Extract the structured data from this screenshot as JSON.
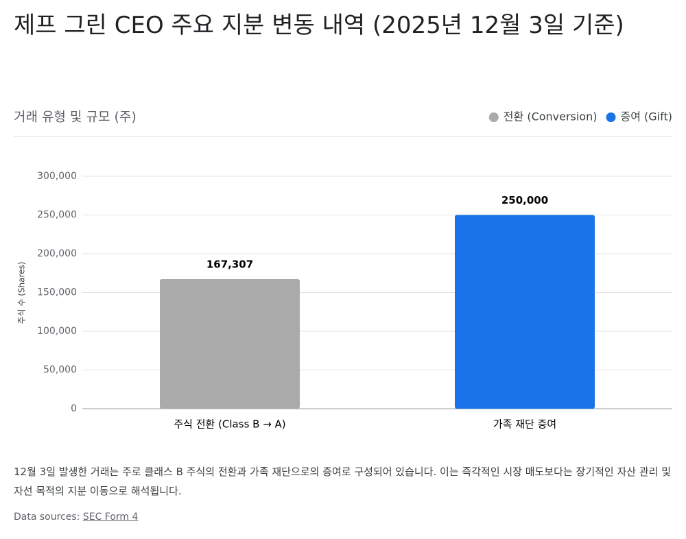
{
  "chart_data": {
    "type": "bar",
    "title": "제프 그린 CEO 주요 지분 변동 내역 (2025년 12월 3일 기준)",
    "subtitle": "거래 유형 및 규모 (주)",
    "y_label": "주식 수 (Shares)",
    "categories": [
      "주식 전환 (Class B → A)",
      "가족 재단 증여"
    ],
    "series": [
      {
        "name": "전환 (Conversion)",
        "color": "#aaaaaa",
        "values": [
          167307,
          null
        ],
        "value_labels": [
          "167,307",
          null
        ]
      },
      {
        "name": "증여 (Gift)",
        "color": "#1a73e8",
        "values": [
          null,
          250000
        ],
        "value_labels": [
          null,
          "250,000"
        ]
      }
    ],
    "ylim": [
      0,
      300000
    ],
    "yticks": [
      0,
      {
        "value": 50000,
        "label": "50,000"
      },
      {
        "value": 100000,
        "label": "100,000"
      },
      {
        "value": 150000,
        "label": "150,000"
      },
      {
        "value": 200000,
        "label": "200,000"
      },
      {
        "value": 250000,
        "label": "250,000"
      },
      {
        "value": 300000,
        "label": "300,000"
      }
    ],
    "grid": true,
    "legend": "top-right"
  },
  "description": "12월 3일 발생한 거래는 주로 클래스 B 주식의 전환과 가족 재단으로의 증여로 구성되어 있습니다. 이는 즉각적인 시장 매도보다는 장기적인 자산 관리 및 자선 목적의 지분 이동으로 해석됩니다.",
  "source": {
    "label": "Data sources:",
    "link": "SEC Form 4"
  }
}
